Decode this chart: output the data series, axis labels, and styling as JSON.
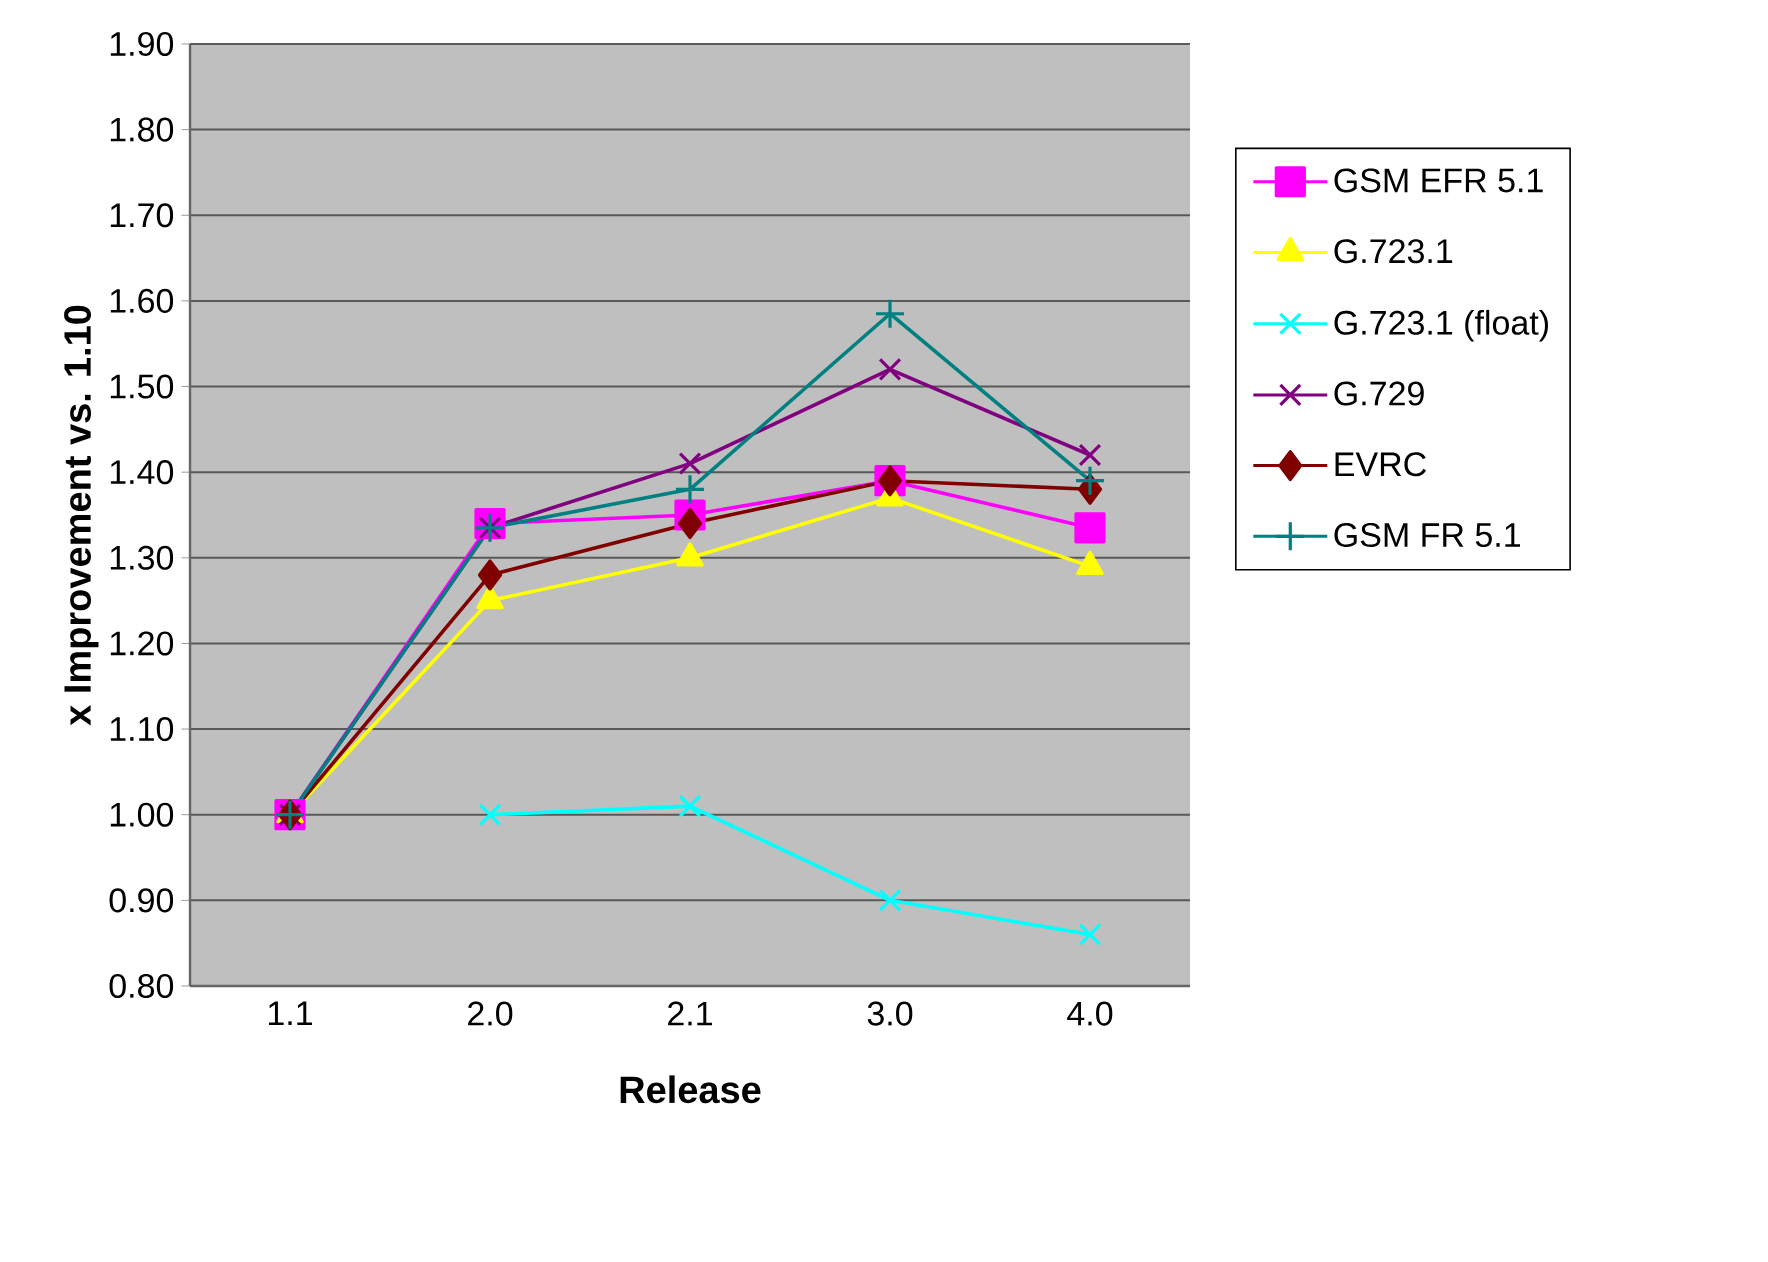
{
  "chart_data": {
    "type": "line",
    "xlabel": "Release",
    "ylabel": "x Improvement vs. 1.10",
    "categories": [
      "1.1",
      "2.0",
      "2.1",
      "3.0",
      "4.0"
    ],
    "ylim": [
      0.8,
      1.9
    ],
    "yticks": [
      {
        "value": 0.8,
        "label": "0.80"
      },
      {
        "value": 0.9,
        "label": "0.90"
      },
      {
        "value": 1.0,
        "label": "1.00"
      },
      {
        "value": 1.1,
        "label": "1.10"
      },
      {
        "value": 1.2,
        "label": "1.20"
      },
      {
        "value": 1.3,
        "label": "1.30"
      },
      {
        "value": 1.4,
        "label": "1.40"
      },
      {
        "value": 1.5,
        "label": "1.50"
      },
      {
        "value": 1.6,
        "label": "1.60"
      },
      {
        "value": 1.7,
        "label": "1.70"
      },
      {
        "value": 1.8,
        "label": "1.80"
      },
      {
        "value": 1.9,
        "label": "1.90"
      }
    ],
    "grid": "y",
    "legend": "right",
    "line_style": "solid",
    "series": [
      {
        "name": "GSM EFR 5.1",
        "color": "#ff00ff",
        "marker": "square",
        "values": [
          1.0,
          1.34,
          1.35,
          1.39,
          1.335
        ]
      },
      {
        "name": "G.723.1",
        "color": "#ffff00",
        "marker": "triangle",
        "values": [
          1.0,
          1.25,
          1.3,
          1.37,
          1.29
        ]
      },
      {
        "name": "G.723.1 (float)",
        "color": "#00ffff",
        "marker": "cross",
        "values": [
          null,
          1.0,
          1.01,
          0.9,
          0.86
        ]
      },
      {
        "name": "G.729",
        "color": "#800080",
        "marker": "cross",
        "values": [
          1.0,
          1.335,
          1.41,
          1.52,
          1.42
        ]
      },
      {
        "name": "EVRC",
        "color": "#800000",
        "marker": "diamond",
        "values": [
          1.0,
          1.28,
          1.34,
          1.39,
          1.38
        ]
      },
      {
        "name": "GSM FR 5.1",
        "color": "#008080",
        "marker": "plus",
        "values": [
          1.0,
          1.335,
          1.38,
          1.585,
          1.39
        ]
      }
    ]
  }
}
